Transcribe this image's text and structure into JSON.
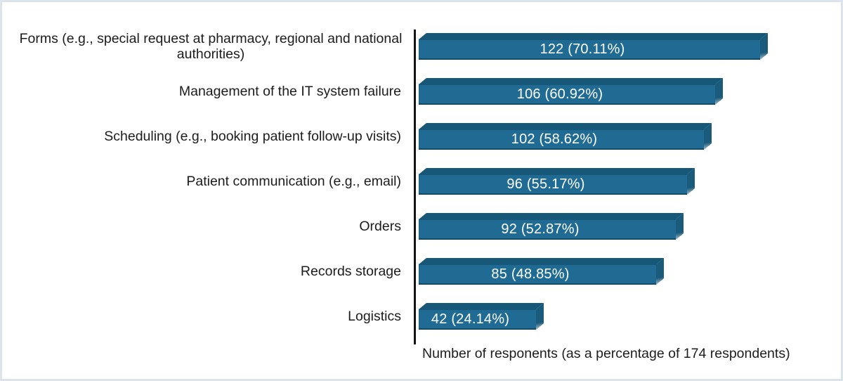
{
  "chart_data": {
    "type": "bar",
    "orientation": "horizontal",
    "title": "",
    "xlabel": "Number of responents (as a percentage of 174 respondents)",
    "total_respondents": 174,
    "xlim": [
      0,
      138
    ],
    "grid": false,
    "legend": "none",
    "categories": [
      "Forms (e.g., special request at pharmacy, regional and national authorities)",
      "Management of the IT system failure",
      "Scheduling (e.g., booking patient follow-up visits)",
      "Patient communication (e.g., email)",
      "Orders",
      "Records storage",
      "Logistics"
    ],
    "values": [
      122,
      106,
      102,
      96,
      92,
      85,
      42
    ],
    "percentages": [
      70.11,
      60.92,
      58.62,
      55.17,
      52.87,
      48.85,
      24.14
    ],
    "bar_labels": [
      "122 (70.11%)",
      "106 (60.92%)",
      "102 (58.62%)",
      "96 (55.17%)",
      "92 (52.87%)",
      "85 (48.85%)",
      "42 (24.14%)"
    ],
    "colors": {
      "bar_front": "#1F6B93",
      "bar_top": "#175777",
      "bar_side": "#1A5A7B",
      "bar_side_highlight": "#AFC3CE",
      "axis_line": "#141414",
      "label_text": "#1C1C1C",
      "value_text": "#FFFFFF",
      "page_border": "#DDE3EA"
    }
  }
}
